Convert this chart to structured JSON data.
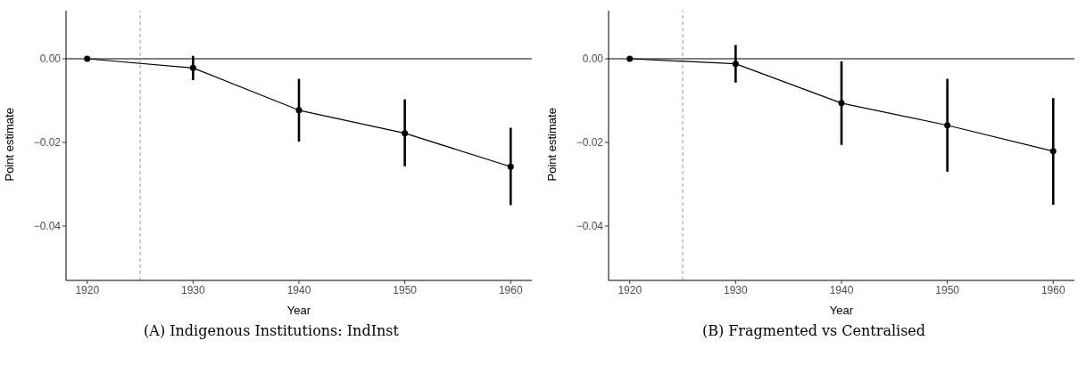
{
  "chart_data": [
    {
      "type": "line",
      "title": "(A) Indigenous Institutions: IndInst",
      "xlabel": "Year",
      "ylabel": "Point estimate",
      "x": [
        1920,
        1930,
        1940,
        1950,
        1960
      ],
      "series": [
        {
          "color": "#000000",
          "values": [
            0,
            -0.0022,
            -0.0123,
            -0.0178,
            -0.0258
          ],
          "errors": [
            null,
            [
              -0.0051,
              0.0007
            ],
            [
              -0.0198,
              -0.0048
            ],
            [
              -0.0257,
              -0.0097
            ],
            [
              -0.035,
              -0.0165
            ]
          ]
        }
      ],
      "xlim": [
        1918,
        1962
      ],
      "xticks": [
        1920,
        1930,
        1940,
        1950,
        1960
      ],
      "ylim": [
        -0.053,
        0.0115
      ],
      "yticks": [
        {
          "value": -0.04,
          "label": "−0.04"
        },
        {
          "value": -0.02,
          "label": "−0.02"
        },
        {
          "value": 0,
          "label": "0.00"
        }
      ],
      "ref_lines": [
        {
          "axis": "y",
          "value": 0,
          "color": "#808080",
          "line_style": "solid"
        },
        {
          "axis": "x",
          "value": 1925,
          "color": "#999999",
          "line_style": "dashed"
        }
      ],
      "marker": "circle",
      "line_style": "solid",
      "grid": false,
      "legend": false
    },
    {
      "type": "line",
      "title": "(B) Fragmented vs Centralised",
      "xlabel": "Year",
      "ylabel": "Point estimate",
      "x": [
        1920,
        1930,
        1940,
        1950,
        1960
      ],
      "series": [
        {
          "color": "#000000",
          "values": [
            0,
            -0.0012,
            -0.0106,
            -0.0159,
            -0.0221
          ],
          "errors": [
            null,
            [
              -0.0057,
              0.0033
            ],
            [
              -0.0206,
              -0.0006
            ],
            [
              -0.027,
              -0.0048
            ],
            [
              -0.0349,
              -0.0094
            ]
          ]
        }
      ],
      "xlim": [
        1918,
        1962
      ],
      "xticks": [
        1920,
        1930,
        1940,
        1950,
        1960
      ],
      "ylim": [
        -0.053,
        0.0115
      ],
      "yticks": [
        {
          "value": -0.04,
          "label": "−0.04"
        },
        {
          "value": -0.02,
          "label": "−0.02"
        },
        {
          "value": 0,
          "label": "0.00"
        }
      ],
      "ref_lines": [
        {
          "axis": "y",
          "value": 0,
          "color": "#808080",
          "line_style": "solid"
        },
        {
          "axis": "x",
          "value": 1925,
          "color": "#999999",
          "line_style": "dashed"
        }
      ],
      "marker": "circle",
      "line_style": "solid",
      "grid": false,
      "legend": false
    }
  ]
}
